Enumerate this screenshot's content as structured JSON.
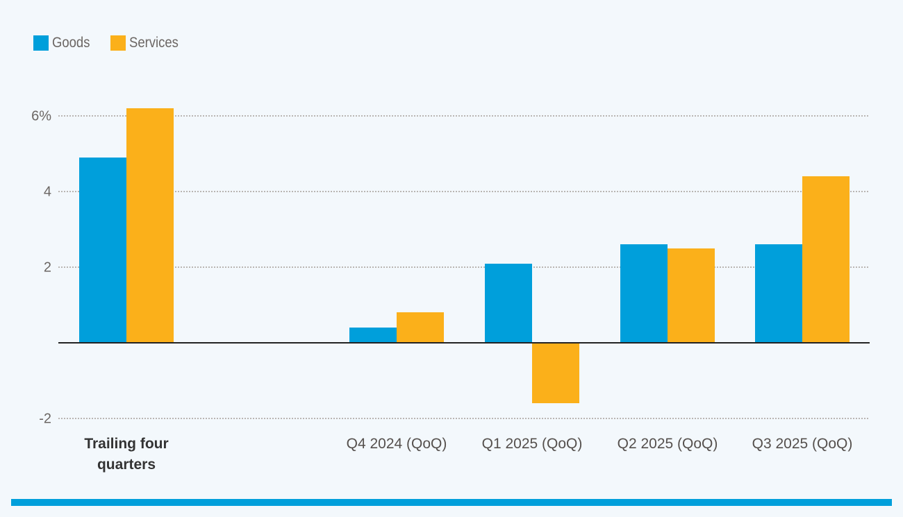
{
  "colors": {
    "goods": "#009fdb",
    "services": "#fbb01a",
    "footer": "#009fdb"
  },
  "legend": [
    {
      "label": "Goods",
      "color": "#009fdb"
    },
    {
      "label": "Services",
      "color": "#fbb01a"
    }
  ],
  "yaxis": {
    "ticks": [
      "6%",
      "4",
      "2",
      "-2"
    ]
  },
  "xaxis": {
    "labels": [
      "Trailing four quarters",
      "Q4 2024 (QoQ)",
      "Q1 2025 (QoQ)",
      "Q2 2025 (QoQ)",
      "Q3 2025 (QoQ)"
    ],
    "label_line1": "Trailing four",
    "label_line2": "quarters"
  },
  "chart_data": {
    "type": "bar",
    "title": "",
    "xlabel": "",
    "ylabel": "",
    "categories": [
      "Trailing four quarters",
      "Q4 2024 (QoQ)",
      "Q1 2025 (QoQ)",
      "Q2 2025 (QoQ)",
      "Q3 2025 (QoQ)"
    ],
    "series": [
      {
        "name": "Goods",
        "color": "#009fdb",
        "values": [
          4.9,
          0.4,
          2.1,
          2.6,
          2.6
        ]
      },
      {
        "name": "Services",
        "color": "#fbb01a",
        "values": [
          6.2,
          0.8,
          -1.6,
          2.5,
          4.4
        ]
      }
    ],
    "yticks": [
      -2,
      0,
      2,
      4,
      6
    ],
    "ytick_labels": [
      "-2",
      "",
      "2",
      "4",
      "6%"
    ],
    "ylim": [
      -2,
      6.5
    ],
    "grid": true,
    "legend_position": "top-left"
  }
}
